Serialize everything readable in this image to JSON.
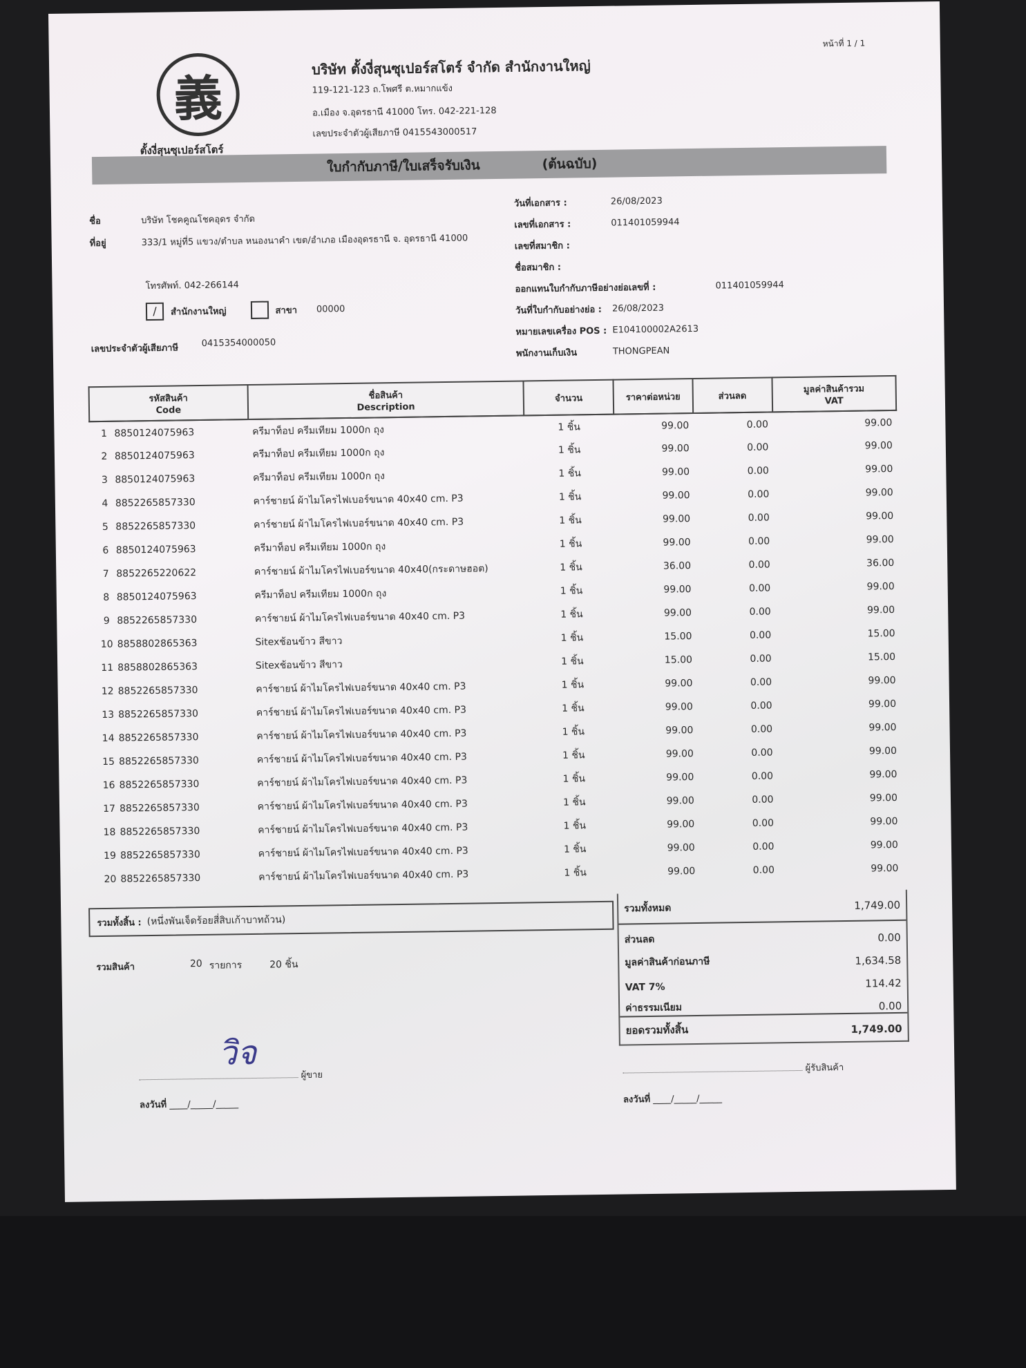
{
  "company": {
    "logo_char": "義",
    "logo_text": "ตั้งงี่สุนซุเปอร์สโตร์",
    "name": "บริษัท ตั้งงี่สุนซุเปอร์สโตร์ จำกัด สำนักงานใหญ่",
    "address1": "119-121-123 ถ.โพศรี ต.หมากแข้ง",
    "address2": "อ.เมือง จ.อุดรธานี 41000  โทร. 042-221-128",
    "tax_id": "เลขประจำตัวผู้เสียภาษี  0415543000517"
  },
  "page_no": "หน้าที่ 1 / 1",
  "doc_title": "ใบกำกับภาษี/ใบเสร็จรับเงิน",
  "doc_copy": "(ต้นฉบับ)",
  "customer": {
    "name_label": "ชื่อ",
    "name": "บริษัท โชคคูณโชคอุดร จำกัด",
    "address_label": "ที่อยู่",
    "address": "333/1 หมู่ที่5  แขวง/ตำบล หนองนาคำ เขต/อำเภอ เมืองอุดรธานี จ. อุดรธานี 41000",
    "phone": "โทรศัพท์. 042-266144",
    "head_office_label": "สำนักงานใหญ่",
    "head_office_checked": true,
    "branch_label": "สาขา",
    "branch_no": "00000",
    "tax_label": "เลขประจำตัวผู้เสียภาษี",
    "tax_id": "0415354000050"
  },
  "doc_info": [
    {
      "label": "วันที่เอกสาร :",
      "value": "26/08/2023"
    },
    {
      "label": "เลขที่เอกสาร :",
      "value": "011401059944"
    },
    {
      "label": "เลขที่สมาชิก :",
      "value": ""
    },
    {
      "label": "ชื่อสมาชิก :",
      "value": ""
    },
    {
      "label": "ออกแทนใบกำกับภาษีอย่างย่อเลขที่ :",
      "value": "011401059944"
    },
    {
      "label": "วันที่ใบกำกับอย่างย่อ :",
      "value": "26/08/2023"
    },
    {
      "label": "หมายเลขเครื่อง POS :",
      "value": "E104100002A2613"
    },
    {
      "label": "พนักงานเก็บเงิน",
      "value": "THONGPEAN"
    }
  ],
  "table": {
    "headers": {
      "code_th": "รหัสสินค้า",
      "code_en": "Code",
      "desc_th": "ชื่อสินค้า",
      "desc_en": "Description",
      "qty": "จำนวน",
      "price": "ราคาต่อหน่วย",
      "discount": "ส่วนลด",
      "amount_th": "มูลค่าสินค้ารวม",
      "amount_en": "VAT"
    },
    "rows": [
      {
        "no": "1",
        "code": "8850124075963",
        "desc": "ครีมาท็อป ครีมเทียม 1000ก ถุง",
        "qty": "1 ชิ้น",
        "price": "99.00",
        "discount": "0.00",
        "amount": "99.00"
      },
      {
        "no": "2",
        "code": "8850124075963",
        "desc": "ครีมาท็อป ครีมเทียม 1000ก ถุง",
        "qty": "1 ชิ้น",
        "price": "99.00",
        "discount": "0.00",
        "amount": "99.00"
      },
      {
        "no": "3",
        "code": "8850124075963",
        "desc": "ครีมาท็อป ครีมเทียม 1000ก ถุง",
        "qty": "1 ชิ้น",
        "price": "99.00",
        "discount": "0.00",
        "amount": "99.00"
      },
      {
        "no": "4",
        "code": "8852265857330",
        "desc": "คาร์ชายน์ ผ้าไมโครไฟเบอร์ขนาด 40x40 cm. P3",
        "qty": "1 ชิ้น",
        "price": "99.00",
        "discount": "0.00",
        "amount": "99.00"
      },
      {
        "no": "5",
        "code": "8852265857330",
        "desc": "คาร์ชายน์ ผ้าไมโครไฟเบอร์ขนาด 40x40 cm. P3",
        "qty": "1 ชิ้น",
        "price": "99.00",
        "discount": "0.00",
        "amount": "99.00"
      },
      {
        "no": "6",
        "code": "8850124075963",
        "desc": "ครีมาท็อป ครีมเทียม 1000ก ถุง",
        "qty": "1 ชิ้น",
        "price": "99.00",
        "discount": "0.00",
        "amount": "99.00"
      },
      {
        "no": "7",
        "code": "8852265220622",
        "desc": "คาร์ชายน์ ผ้าไมโครไฟเบอร์ขนาด 40x40(กระดาษฮอต)",
        "qty": "1 ชิ้น",
        "price": "36.00",
        "discount": "0.00",
        "amount": "36.00"
      },
      {
        "no": "8",
        "code": "8850124075963",
        "desc": "ครีมาท็อป ครีมเทียม 1000ก ถุง",
        "qty": "1 ชิ้น",
        "price": "99.00",
        "discount": "0.00",
        "amount": "99.00"
      },
      {
        "no": "9",
        "code": "8852265857330",
        "desc": "คาร์ชายน์ ผ้าไมโครไฟเบอร์ขนาด 40x40 cm. P3",
        "qty": "1 ชิ้น",
        "price": "99.00",
        "discount": "0.00",
        "amount": "99.00"
      },
      {
        "no": "10",
        "code": "8858802865363",
        "desc": "Sitexช้อนข้าว สีขาว",
        "qty": "1 ชิ้น",
        "price": "15.00",
        "discount": "0.00",
        "amount": "15.00"
      },
      {
        "no": "11",
        "code": "8858802865363",
        "desc": "Sitexช้อนข้าว สีขาว",
        "qty": "1 ชิ้น",
        "price": "15.00",
        "discount": "0.00",
        "amount": "15.00"
      },
      {
        "no": "12",
        "code": "8852265857330",
        "desc": "คาร์ชายน์ ผ้าไมโครไฟเบอร์ขนาด 40x40 cm. P3",
        "qty": "1 ชิ้น",
        "price": "99.00",
        "discount": "0.00",
        "amount": "99.00"
      },
      {
        "no": "13",
        "code": "8852265857330",
        "desc": "คาร์ชายน์ ผ้าไมโครไฟเบอร์ขนาด 40x40 cm. P3",
        "qty": "1 ชิ้น",
        "price": "99.00",
        "discount": "0.00",
        "amount": "99.00"
      },
      {
        "no": "14",
        "code": "8852265857330",
        "desc": "คาร์ชายน์ ผ้าไมโครไฟเบอร์ขนาด 40x40 cm. P3",
        "qty": "1 ชิ้น",
        "price": "99.00",
        "discount": "0.00",
        "amount": "99.00"
      },
      {
        "no": "15",
        "code": "8852265857330",
        "desc": "คาร์ชายน์ ผ้าไมโครไฟเบอร์ขนาด 40x40 cm. P3",
        "qty": "1 ชิ้น",
        "price": "99.00",
        "discount": "0.00",
        "amount": "99.00"
      },
      {
        "no": "16",
        "code": "8852265857330",
        "desc": "คาร์ชายน์ ผ้าไมโครไฟเบอร์ขนาด 40x40 cm. P3",
        "qty": "1 ชิ้น",
        "price": "99.00",
        "discount": "0.00",
        "amount": "99.00"
      },
      {
        "no": "17",
        "code": "8852265857330",
        "desc": "คาร์ชายน์ ผ้าไมโครไฟเบอร์ขนาด 40x40 cm. P3",
        "qty": "1 ชิ้น",
        "price": "99.00",
        "discount": "0.00",
        "amount": "99.00"
      },
      {
        "no": "18",
        "code": "8852265857330",
        "desc": "คาร์ชายน์ ผ้าไมโครไฟเบอร์ขนาด 40x40 cm. P3",
        "qty": "1 ชิ้น",
        "price": "99.00",
        "discount": "0.00",
        "amount": "99.00"
      },
      {
        "no": "19",
        "code": "8852265857330",
        "desc": "คาร์ชายน์ ผ้าไมโครไฟเบอร์ขนาด 40x40 cm. P3",
        "qty": "1 ชิ้น",
        "price": "99.00",
        "discount": "0.00",
        "amount": "99.00"
      },
      {
        "no": "20",
        "code": "8852265857330",
        "desc": "คาร์ชายน์ ผ้าไมโครไฟเบอร์ขนาด 40x40 cm. P3",
        "qty": "1 ชิ้น",
        "price": "99.00",
        "discount": "0.00",
        "amount": "99.00"
      }
    ]
  },
  "summary": {
    "total_text_label": "รวมทั้งสิ้น :",
    "total_text": "(หนึ่งพันเจ็ดร้อยสี่สิบเก้าบาทถ้วน)",
    "items_label": "รวมสินค้า",
    "items_count": "20",
    "items_unit": "รายการ",
    "pieces": "20 ชิ้น",
    "rows": [
      {
        "label": "รวมทั้งหมด",
        "value": "1,749.00"
      },
      {
        "label": "ส่วนลด",
        "value": "0.00"
      },
      {
        "label": "มูลค่าสินค้าก่อนภาษี",
        "value": "1,634.58"
      },
      {
        "label": "VAT 7%",
        "value": "114.42"
      },
      {
        "label": "ค่าธรรมเนียม",
        "value": "0.00"
      }
    ],
    "grand_total_label": "ยอดรวมทั้งสิ้น",
    "grand_total": "1,749.00"
  },
  "signatures": {
    "seller_label": "ผู้ขาย",
    "receiver_label": "ผู้รับสินค้า",
    "date_label": "ลงวันที่",
    "date_blank": "____/_____/_____",
    "seller_mark": "วิจ"
  }
}
